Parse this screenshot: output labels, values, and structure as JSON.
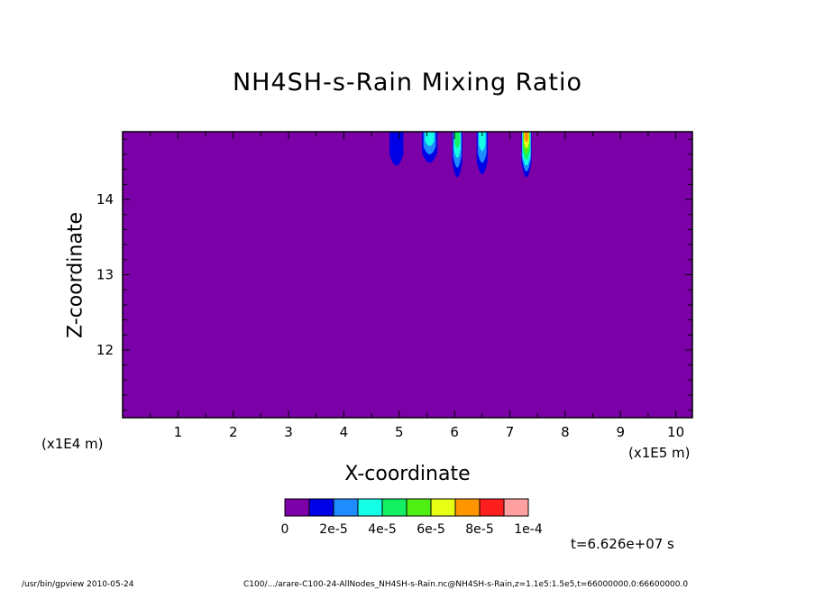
{
  "chart_data": {
    "type": "contour",
    "title": "NH4SH-s-Rain Mixing Ratio",
    "xlabel": "X-coordinate",
    "ylabel": "Z-coordinate",
    "x_unit_left": "(x1E4 m)",
    "x_unit_right": "(x1E5 m)",
    "xlim": [
      0,
      10.3
    ],
    "ylim": [
      11.1,
      14.9
    ],
    "x_ticks": [
      "1",
      "2",
      "3",
      "4",
      "5",
      "6",
      "7",
      "8",
      "9",
      "10"
    ],
    "y_ticks": [
      "12",
      "13",
      "14"
    ],
    "background_color": "#7B00A8",
    "plumes": [
      {
        "x": 4.95,
        "width": 0.25,
        "bottom": 14.35,
        "max_level": 1
      },
      {
        "x": 5.55,
        "width": 0.28,
        "bottom": 14.4,
        "max_level": 3
      },
      {
        "x": 6.05,
        "width": 0.18,
        "bottom": 14.15,
        "max_level": 4
      },
      {
        "x": 6.5,
        "width": 0.2,
        "bottom": 14.2,
        "max_level": 3
      },
      {
        "x": 7.3,
        "width": 0.18,
        "bottom": 14.15,
        "max_level": 7
      }
    ],
    "colorbar": {
      "colors": [
        "#7B00A8",
        "#0000E6",
        "#1E8CFF",
        "#14FFE6",
        "#14F064",
        "#50F014",
        "#E6FF14",
        "#FF9600",
        "#FF1E1E",
        "#FFA0A0"
      ],
      "labels": [
        "0",
        "2e-5",
        "4e-5",
        "6e-5",
        "8e-5",
        "1e-4"
      ]
    },
    "time_label": "t=6.626e+07 s",
    "footer_left": "/usr/bin/gpview  2010-05-24",
    "footer_right": "C100/.../arare-C100-24-AllNodes_NH4SH-s-Rain.nc@NH4SH-s-Rain,z=1.1e5:1.5e5,t=66000000.0:66600000.0"
  }
}
